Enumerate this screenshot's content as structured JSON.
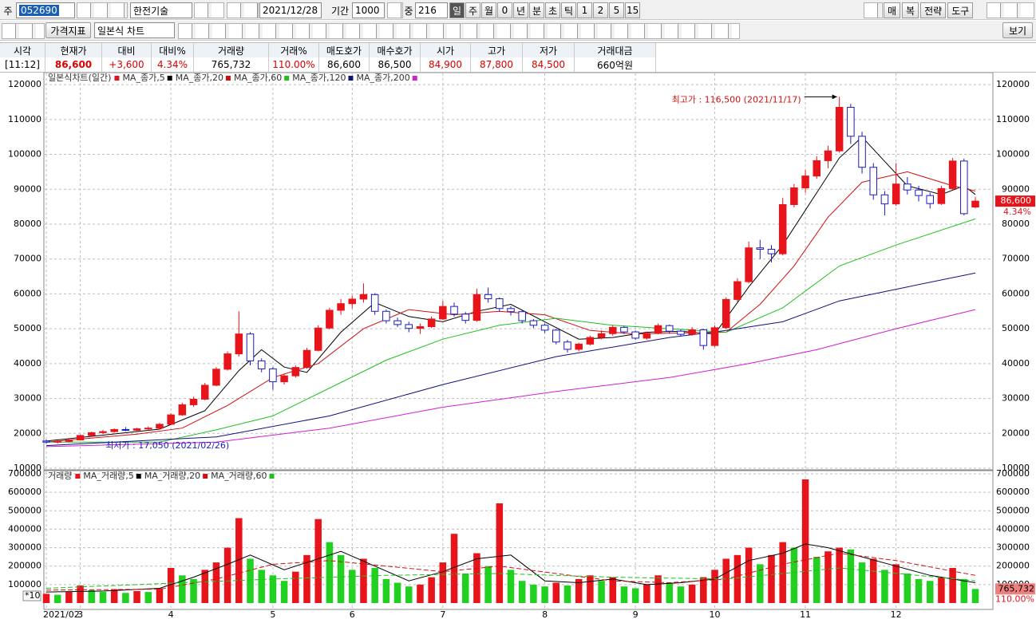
{
  "toolbar": {
    "market": "주",
    "code": "052690",
    "name": "한전기술",
    "date": "2021/12/28",
    "period_label": "기간",
    "period": "1000",
    "count_label": "중",
    "count": "216",
    "timeframes": [
      "일",
      "주",
      "월",
      "0",
      "년",
      "분",
      "초",
      "틱",
      "1",
      "2",
      "5",
      "15"
    ],
    "right_buttons": [
      "매",
      "복",
      "전략",
      "도구"
    ],
    "indicator_button": "가격지표",
    "chart_style": "일본식 차트",
    "view_button": "보기"
  },
  "quote_table": {
    "headers": [
      "시각",
      "현재가",
      "대비",
      "대비%",
      "거래량",
      "거래%",
      "매도호가",
      "매수호가",
      "시가",
      "고가",
      "저가",
      "거래대금"
    ],
    "values": [
      "[11:12]",
      "86,600",
      "+3,600",
      "4.34%",
      "765,732",
      "110.00%",
      "86,600",
      "86,500",
      "84,900",
      "87,800",
      "84,500",
      "660억원"
    ]
  },
  "chart_data": [
    {
      "type": "candlestick",
      "title": "일본식차트(일간)",
      "up_color": "#e8141b",
      "down_color": "#1c1cc8",
      "grid": true,
      "ylim": [
        10000,
        123000
      ],
      "yticks": [
        10000,
        20000,
        30000,
        40000,
        50000,
        60000,
        70000,
        80000,
        90000,
        100000,
        110000,
        120000
      ],
      "ohlc": [
        [
          17800,
          18200,
          17100,
          17500
        ],
        [
          17500,
          18000,
          17050,
          17700
        ],
        [
          17700,
          18400,
          17400,
          18100
        ],
        [
          18100,
          19600,
          18000,
          19400
        ],
        [
          19400,
          20500,
          19100,
          20200
        ],
        [
          20200,
          21000,
          19800,
          20500
        ],
        [
          20500,
          21400,
          20200,
          21100
        ],
        [
          21100,
          21800,
          20600,
          20900
        ],
        [
          20900,
          21600,
          20500,
          21300
        ],
        [
          21300,
          22000,
          20800,
          21500
        ],
        [
          21500,
          23000,
          21200,
          22600
        ],
        [
          22600,
          25800,
          22400,
          25300
        ],
        [
          25300,
          28800,
          25000,
          28200
        ],
        [
          28200,
          30500,
          27600,
          29800
        ],
        [
          29800,
          34500,
          29500,
          33800
        ],
        [
          33800,
          39000,
          33500,
          38400
        ],
        [
          38400,
          43500,
          38000,
          42800
        ],
        [
          42800,
          55000,
          42000,
          48500
        ],
        [
          48500,
          49000,
          39500,
          40800
        ],
        [
          40800,
          41500,
          37500,
          38500
        ],
        [
          38500,
          39000,
          32500,
          34800
        ],
        [
          34800,
          37000,
          34000,
          36500
        ],
        [
          36500,
          39500,
          36000,
          38900
        ],
        [
          38900,
          44500,
          38500,
          43800
        ],
        [
          43800,
          51000,
          43500,
          50200
        ],
        [
          50200,
          56000,
          49800,
          55300
        ],
        [
          55300,
          58500,
          54000,
          57200
        ],
        [
          57200,
          59500,
          55800,
          58500
        ],
        [
          58500,
          63000,
          57500,
          59800
        ],
        [
          59800,
          60200,
          54000,
          55000
        ],
        [
          55000,
          55500,
          51500,
          52300
        ],
        [
          52300,
          53200,
          50500,
          51200
        ],
        [
          51200,
          52000,
          49000,
          50100
        ],
        [
          50100,
          51500,
          48500,
          50600
        ],
        [
          50600,
          53500,
          50200,
          52800
        ],
        [
          52800,
          58000,
          52500,
          56400
        ],
        [
          56400,
          57500,
          53500,
          54200
        ],
        [
          54200,
          54800,
          51500,
          52400
        ],
        [
          52400,
          61500,
          52000,
          59800
        ],
        [
          59800,
          61800,
          57500,
          58600
        ],
        [
          58600,
          59000,
          55000,
          55800
        ],
        [
          55800,
          56500,
          53800,
          54900
        ],
        [
          54900,
          55200,
          51500,
          52300
        ],
        [
          52300,
          52800,
          50200,
          51000
        ],
        [
          51000,
          51500,
          48800,
          49600
        ],
        [
          49600,
          50000,
          45500,
          46200
        ],
        [
          46200,
          46800,
          43200,
          44100
        ],
        [
          44100,
          46000,
          43500,
          45600
        ],
        [
          45600,
          48000,
          45200,
          47500
        ],
        [
          47500,
          49500,
          47000,
          48600
        ],
        [
          48600,
          51000,
          48000,
          50400
        ],
        [
          50400,
          50800,
          48500,
          49100
        ],
        [
          49100,
          49500,
          46800,
          47300
        ],
        [
          47300,
          49200,
          46900,
          48700
        ],
        [
          48700,
          51500,
          48400,
          50900
        ],
        [
          50900,
          51200,
          48600,
          49300
        ],
        [
          49300,
          49800,
          47900,
          48400
        ],
        [
          48400,
          50500,
          48000,
          49700
        ],
        [
          49700,
          50000,
          44000,
          45200
        ],
        [
          45200,
          51000,
          44800,
          50300
        ],
        [
          50300,
          59000,
          50000,
          58400
        ],
        [
          58400,
          64500,
          57800,
          63500
        ],
        [
          63500,
          75000,
          63000,
          73200
        ],
        [
          73200,
          75500,
          70000,
          72800
        ],
        [
          72800,
          74000,
          69000,
          71500
        ],
        [
          71500,
          87500,
          71000,
          85600
        ],
        [
          85600,
          91500,
          84800,
          90400
        ],
        [
          90400,
          95500,
          89000,
          93800
        ],
        [
          93800,
          99500,
          93000,
          98200
        ],
        [
          98200,
          102500,
          96000,
          101000
        ],
        [
          101000,
          116500,
          100500,
          113500
        ],
        [
          113500,
          114500,
          103000,
          105200
        ],
        [
          105200,
          106500,
          94500,
          96300
        ],
        [
          96300,
          97500,
          87000,
          88400
        ],
        [
          88400,
          89500,
          82500,
          85800
        ],
        [
          85800,
          97500,
          85200,
          91500
        ],
        [
          91500,
          93500,
          88500,
          89800
        ],
        [
          89800,
          91000,
          86500,
          88200
        ],
        [
          88200,
          89000,
          84500,
          85900
        ],
        [
          85900,
          91000,
          85500,
          90200
        ],
        [
          90200,
          99000,
          89800,
          98100
        ],
        [
          98100,
          98800,
          82500,
          83000
        ],
        [
          84900,
          87800,
          84500,
          86600
        ]
      ],
      "series": [
        {
          "name": "MA_종가,5",
          "color": "#000000",
          "x": [
            0,
            5,
            10,
            14,
            17,
            19,
            21,
            23,
            26,
            29,
            32,
            35,
            38,
            41,
            44,
            47,
            50,
            53,
            56,
            59,
            62,
            65,
            68,
            70,
            72,
            74,
            76,
            79,
            81,
            82
          ],
          "values": [
            17800,
            19500,
            21200,
            26500,
            38000,
            44000,
            39000,
            37500,
            49000,
            57500,
            53500,
            52000,
            55000,
            57000,
            52000,
            47000,
            47500,
            49000,
            49300,
            48500,
            62000,
            74000,
            89000,
            99000,
            105000,
            98000,
            91000,
            88500,
            91000,
            88500
          ]
        },
        {
          "name": "MA_종가,20",
          "color": "#d01010",
          "x": [
            0,
            8,
            12,
            16,
            20,
            24,
            28,
            32,
            36,
            40,
            44,
            48,
            52,
            56,
            60,
            63,
            66,
            69,
            72,
            76,
            80,
            82
          ],
          "values": [
            17500,
            19800,
            21500,
            28000,
            36000,
            40000,
            50000,
            55500,
            54000,
            55000,
            54000,
            49500,
            48500,
            48800,
            49000,
            57000,
            68000,
            82000,
            92000,
            95000,
            91000,
            89500
          ]
        },
        {
          "name": "MA_종가,60",
          "color": "#20c020",
          "x": [
            0,
            10,
            15,
            20,
            25,
            30,
            35,
            40,
            45,
            50,
            55,
            60,
            65,
            70,
            75,
            82
          ],
          "values": [
            17500,
            17500,
            21000,
            25000,
            33000,
            41000,
            47000,
            51000,
            53000,
            51000,
            50000,
            49000,
            56000,
            68000,
            74000,
            81500
          ]
        },
        {
          "name": "MA_종가,120",
          "color": "#101080",
          "x": [
            0,
            15,
            25,
            35,
            45,
            55,
            60,
            65,
            70,
            76,
            82
          ],
          "values": [
            16500,
            19000,
            25000,
            34000,
            42000,
            47500,
            49500,
            52000,
            58000,
            62000,
            66000
          ]
        },
        {
          "name": "MA_종가,200",
          "color": "#d020d0",
          "x": [
            0,
            15,
            25,
            35,
            45,
            55,
            62,
            68,
            75,
            82
          ],
          "values": [
            16200,
            17500,
            21500,
            27500,
            32000,
            36000,
            40000,
            44000,
            50000,
            55500
          ]
        }
      ],
      "annotations": [
        {
          "text": "최고가 : 116,500 (2021/11/17)",
          "x": 70,
          "y": 116500,
          "color": "#d01010"
        },
        {
          "text": "최저가 : 17,050 (2021/02/26)",
          "x": 1,
          "y": 17050,
          "color": "#1c1cc8"
        }
      ],
      "last_price": {
        "value": 86600,
        "label": "86,600"
      },
      "last_change": "4.34%"
    },
    {
      "type": "bar",
      "title": "거래량",
      "up_color": "#e8141b",
      "down_color": "#22d022",
      "grid": true,
      "scale_label": "*10",
      "ylim": [
        0,
        700000
      ],
      "yticks": [
        100000,
        200000,
        300000,
        400000,
        500000,
        600000,
        700000
      ],
      "xticks": [
        {
          "value": 0,
          "label": "2021/02"
        },
        {
          "value": 3,
          "label": "3"
        },
        {
          "value": 11,
          "label": "4"
        },
        {
          "value": 20,
          "label": "5"
        },
        {
          "value": 27,
          "label": "6"
        },
        {
          "value": 35,
          "label": "7"
        },
        {
          "value": 44,
          "label": "8"
        },
        {
          "value": 52,
          "label": "9"
        },
        {
          "value": 59,
          "label": "10"
        },
        {
          "value": 67,
          "label": "11"
        },
        {
          "value": 75,
          "label": "12"
        }
      ],
      "values": [
        50000,
        45000,
        60000,
        95000,
        70000,
        60000,
        75000,
        55000,
        65000,
        60000,
        80000,
        190000,
        150000,
        130000,
        180000,
        220000,
        300000,
        460000,
        240000,
        180000,
        150000,
        120000,
        170000,
        260000,
        455000,
        330000,
        260000,
        180000,
        240000,
        190000,
        130000,
        110000,
        90000,
        100000,
        140000,
        220000,
        375000,
        160000,
        270000,
        200000,
        540000,
        180000,
        120000,
        100000,
        90000,
        110000,
        95000,
        130000,
        150000,
        120000,
        140000,
        90000,
        80000,
        100000,
        150000,
        110000,
        90000,
        100000,
        140000,
        180000,
        240000,
        260000,
        300000,
        210000,
        260000,
        330000,
        300000,
        670000,
        250000,
        280000,
        300000,
        290000,
        220000,
        240000,
        180000,
        210000,
        160000,
        130000,
        120000,
        140000,
        190000,
        130000,
        76573.2
      ],
      "series": [
        {
          "name": "MA_거래량,5",
          "color": "#000000",
          "dash": false,
          "x": [
            0,
            5,
            10,
            13,
            16,
            18,
            21,
            24,
            26,
            29,
            32,
            35,
            38,
            41,
            44,
            47,
            50,
            53,
            56,
            59,
            62,
            65,
            67,
            69,
            72,
            75,
            78,
            82
          ],
          "values": [
            60000,
            65000,
            80000,
            140000,
            210000,
            260000,
            180000,
            240000,
            280000,
            200000,
            120000,
            170000,
            240000,
            260000,
            120000,
            110000,
            130000,
            100000,
            110000,
            130000,
            230000,
            270000,
            320000,
            300000,
            250000,
            200000,
            150000,
            110000
          ]
        },
        {
          "name": "MA_거래량,20",
          "color": "#d01010",
          "dash": true,
          "x": [
            0,
            10,
            15,
            20,
            25,
            30,
            35,
            40,
            45,
            50,
            55,
            60,
            65,
            70,
            75,
            82
          ],
          "values": [
            70000,
            75000,
            130000,
            210000,
            230000,
            200000,
            170000,
            200000,
            160000,
            120000,
            110000,
            130000,
            210000,
            270000,
            230000,
            150000
          ]
        },
        {
          "name": "MA_거래량,60",
          "color": "#20c020",
          "dash": true,
          "x": [
            0,
            20,
            30,
            40,
            50,
            60,
            70,
            82
          ],
          "values": [
            80000,
            130000,
            150000,
            160000,
            140000,
            130000,
            190000,
            120000
          ]
        }
      ],
      "last_volume": {
        "value": 76573.2,
        "label": "765,732"
      },
      "last_ratio": "110.00%"
    }
  ]
}
